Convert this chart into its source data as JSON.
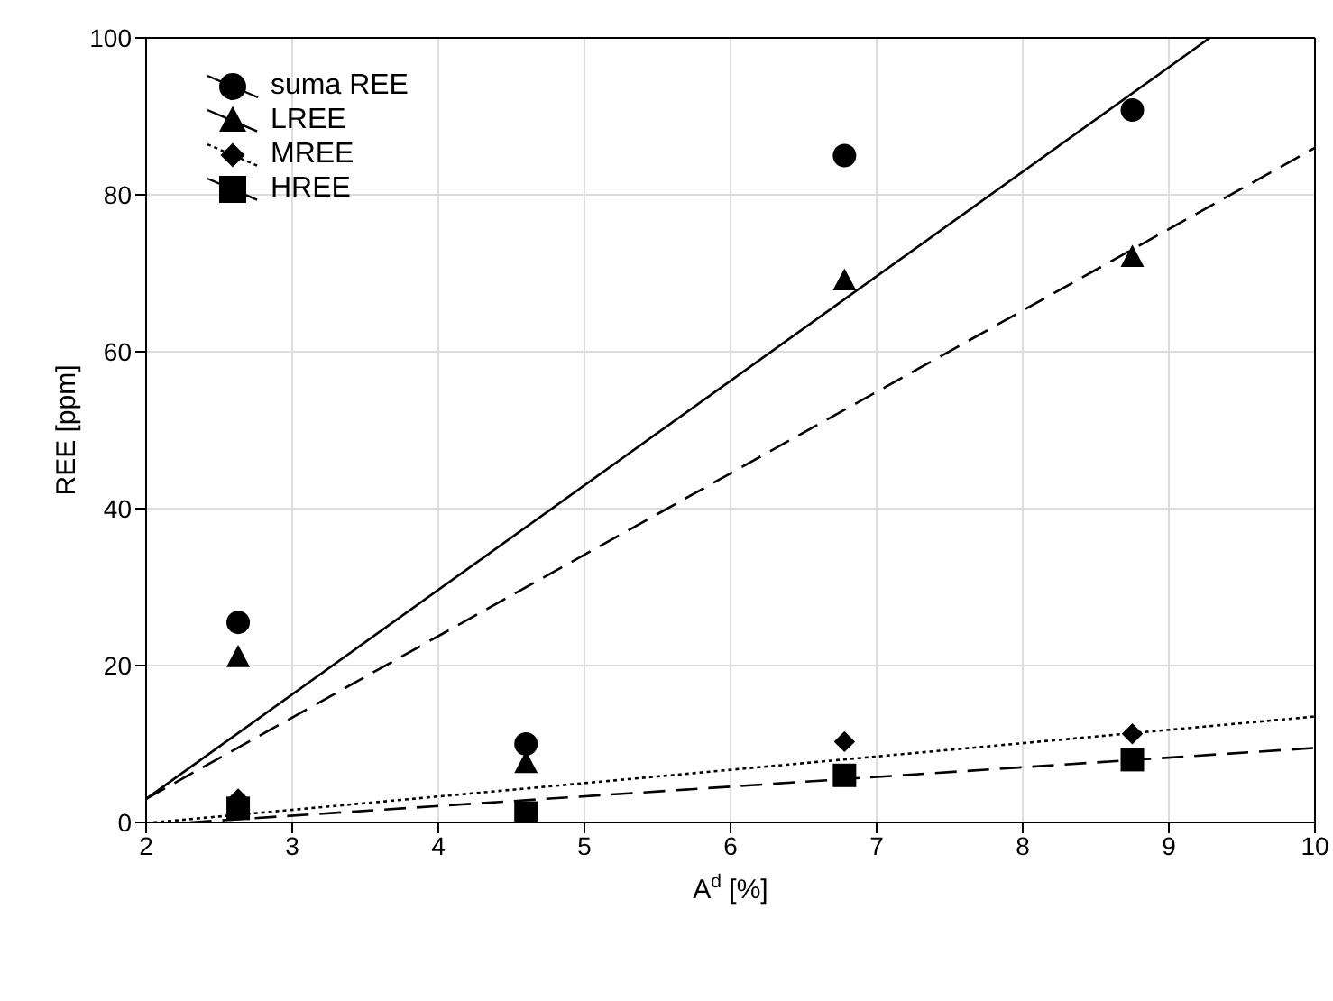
{
  "chart_data": {
    "type": "scatter",
    "xlabel": "A$^{d}$ [%]",
    "ylabel": "REE [ppm]",
    "xlim": [
      2,
      10
    ],
    "ylim": [
      0,
      100
    ],
    "xticks": [
      2,
      3,
      4,
      5,
      6,
      7,
      8,
      9,
      10
    ],
    "yticks": [
      0,
      20,
      40,
      60,
      80,
      100
    ],
    "grid": true,
    "legend": "top left",
    "series": [
      {
        "name": "suma REE",
        "color": "#000000",
        "marker": "circle",
        "x": [
          2.63,
          4.6,
          6.78,
          8.75
        ],
        "values": [
          25.5,
          10,
          85,
          90.8
        ]
      },
      {
        "name": "LREE",
        "color": "#000000",
        "marker": "triangle",
        "x": [
          2.63,
          4.6,
          6.78,
          8.75
        ],
        "values": [
          21,
          7.5,
          69,
          72
        ]
      },
      {
        "name": "MREE",
        "color": "#000000",
        "marker": "diamond",
        "x": [
          2.63,
          4.6,
          6.78,
          8.75
        ],
        "values": [
          3,
          null,
          10.3,
          11.3
        ]
      },
      {
        "name": "HREE",
        "color": "#000000",
        "marker": "square",
        "x": [
          2.63,
          4.6,
          6.78,
          8.75
        ],
        "values": [
          1.8,
          1.2,
          6,
          8
        ]
      },
      {
        "type": "line",
        "color": "#000000",
        "line_style": "solid",
        "marker": "none",
        "x": [
          2,
          9.28
        ],
        "values": [
          3,
          100
        ]
      },
      {
        "type": "line",
        "color": "#000000",
        "line_style": "dashed",
        "marker": "none",
        "x": [
          2,
          10
        ],
        "values": [
          3,
          86
        ]
      },
      {
        "type": "line",
        "color": "#000000",
        "line_style": "dotted",
        "marker": "none",
        "x": [
          2.05,
          10
        ],
        "values": [
          0,
          13.5
        ]
      },
      {
        "type": "line",
        "color": "#000000",
        "line_style": "dashed",
        "marker": "none",
        "x": [
          2.3,
          10
        ],
        "values": [
          0,
          9.5
        ]
      }
    ]
  }
}
